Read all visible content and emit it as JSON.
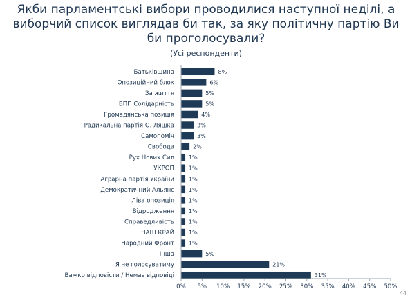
{
  "title_lines": [
    "Якби парламентські вибори проводилися наступної неділі, а",
    "виборчий список виглядав би так, за яку політичну партію Ви",
    "би проголосували?"
  ],
  "subtitle": "(Усі респонденти)",
  "page_number": "44",
  "colors": {
    "bar": "#1f3a56",
    "axis": "#9aa6b2",
    "text": "#1f3650"
  },
  "chart_data": {
    "type": "bar",
    "orientation": "horizontal",
    "categories": [
      "Батьківщина",
      "Опозиційний блок",
      "За життя",
      "БПП Солідарність",
      "Громадянська позиція",
      "Радикальна партія О. Ляшка",
      "Самопоміч",
      "Свобода",
      "Рух Нових Сил",
      "УКРОП",
      "Аграрна партія України",
      "Демократичний Альянс",
      "Ліва опозиція",
      "Відродження",
      "Справедливість",
      "НАШ КРАЙ",
      "Народний Фронт",
      "Інша",
      "Я не голосуватиму",
      "Важко відповісти / Немає відповіді"
    ],
    "values": [
      8,
      6,
      5,
      5,
      4,
      3,
      3,
      2,
      1,
      1,
      1,
      1,
      1,
      1,
      1,
      1,
      1,
      5,
      21,
      31
    ],
    "value_labels": [
      "8%",
      "6%",
      "5%",
      "5%",
      "4%",
      "3%",
      "3%",
      "2%",
      "1%",
      "1%",
      "1%",
      "1%",
      "1%",
      "1%",
      "1%",
      "1%",
      "1%",
      "5%",
      "21%",
      "31%"
    ],
    "xlim": [
      0,
      50
    ],
    "xticks": [
      0,
      5,
      10,
      15,
      20,
      25,
      30,
      35,
      40,
      45,
      50
    ],
    "xtick_labels": [
      "0%",
      "5%",
      "10%",
      "15%",
      "20%",
      "25%",
      "30%",
      "35%",
      "40%",
      "45%",
      "50%"
    ],
    "grid": false,
    "legend": "none"
  }
}
